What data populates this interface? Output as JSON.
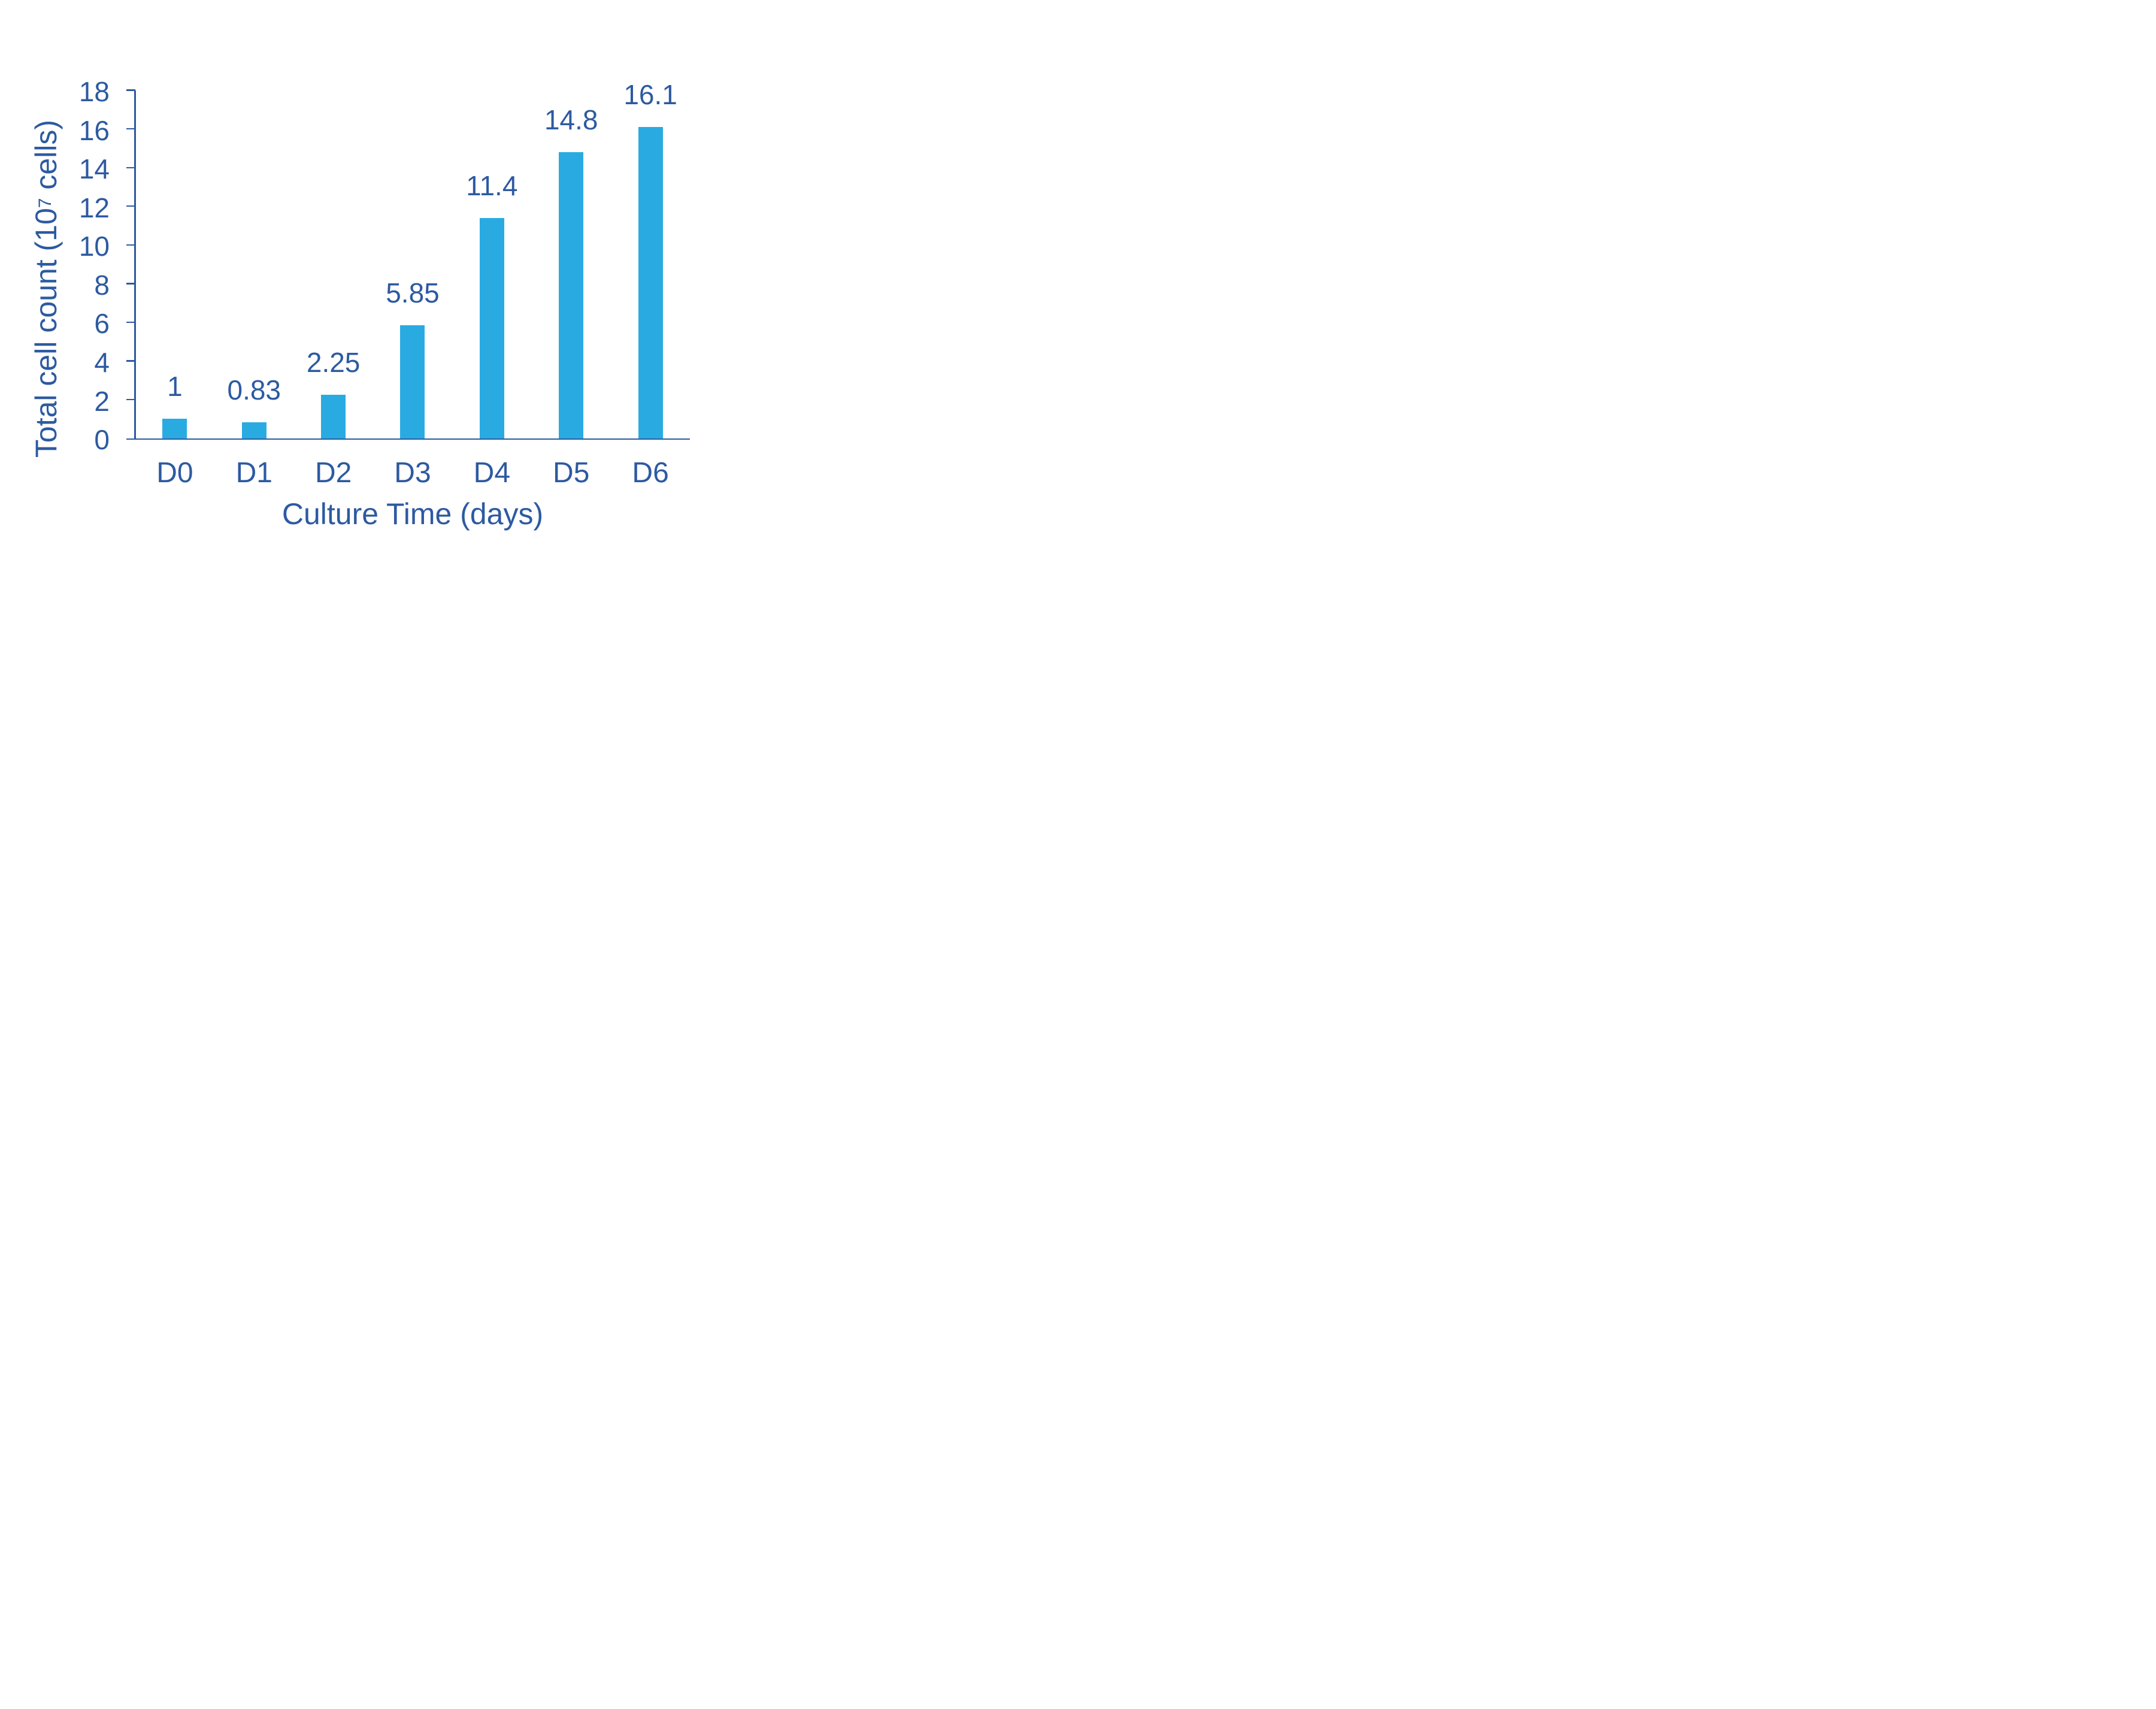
{
  "chart_data": {
    "type": "bar",
    "categories": [
      "D0",
      "D1",
      "D2",
      "D3",
      "D4",
      "D5",
      "D6"
    ],
    "values": [
      1,
      0.83,
      2.25,
      5.85,
      11.4,
      14.8,
      16.1
    ],
    "value_labels": [
      "1",
      "0.83",
      "2.25",
      "5.85",
      "11.4",
      "14.8",
      "16.1"
    ],
    "title": "",
    "xlabel": "Culture Time (days)",
    "ylabel": "Total cell count (10⁷ cells)",
    "ylabel_parts": {
      "prefix": "Total cell count (10",
      "superscript": "7",
      "suffix": " cells)"
    },
    "ylim": [
      0,
      18
    ],
    "ytick_step": 2,
    "ytick_labels": [
      "0",
      "2",
      "4",
      "6",
      "8",
      "10",
      "12",
      "14",
      "16",
      "18"
    ],
    "grid": false,
    "legend": null,
    "bar_data_labels_shown": true,
    "colors": {
      "bar": "#29ABE2",
      "text": "#2D5AA1",
      "axis": "#2D5AA1"
    }
  }
}
